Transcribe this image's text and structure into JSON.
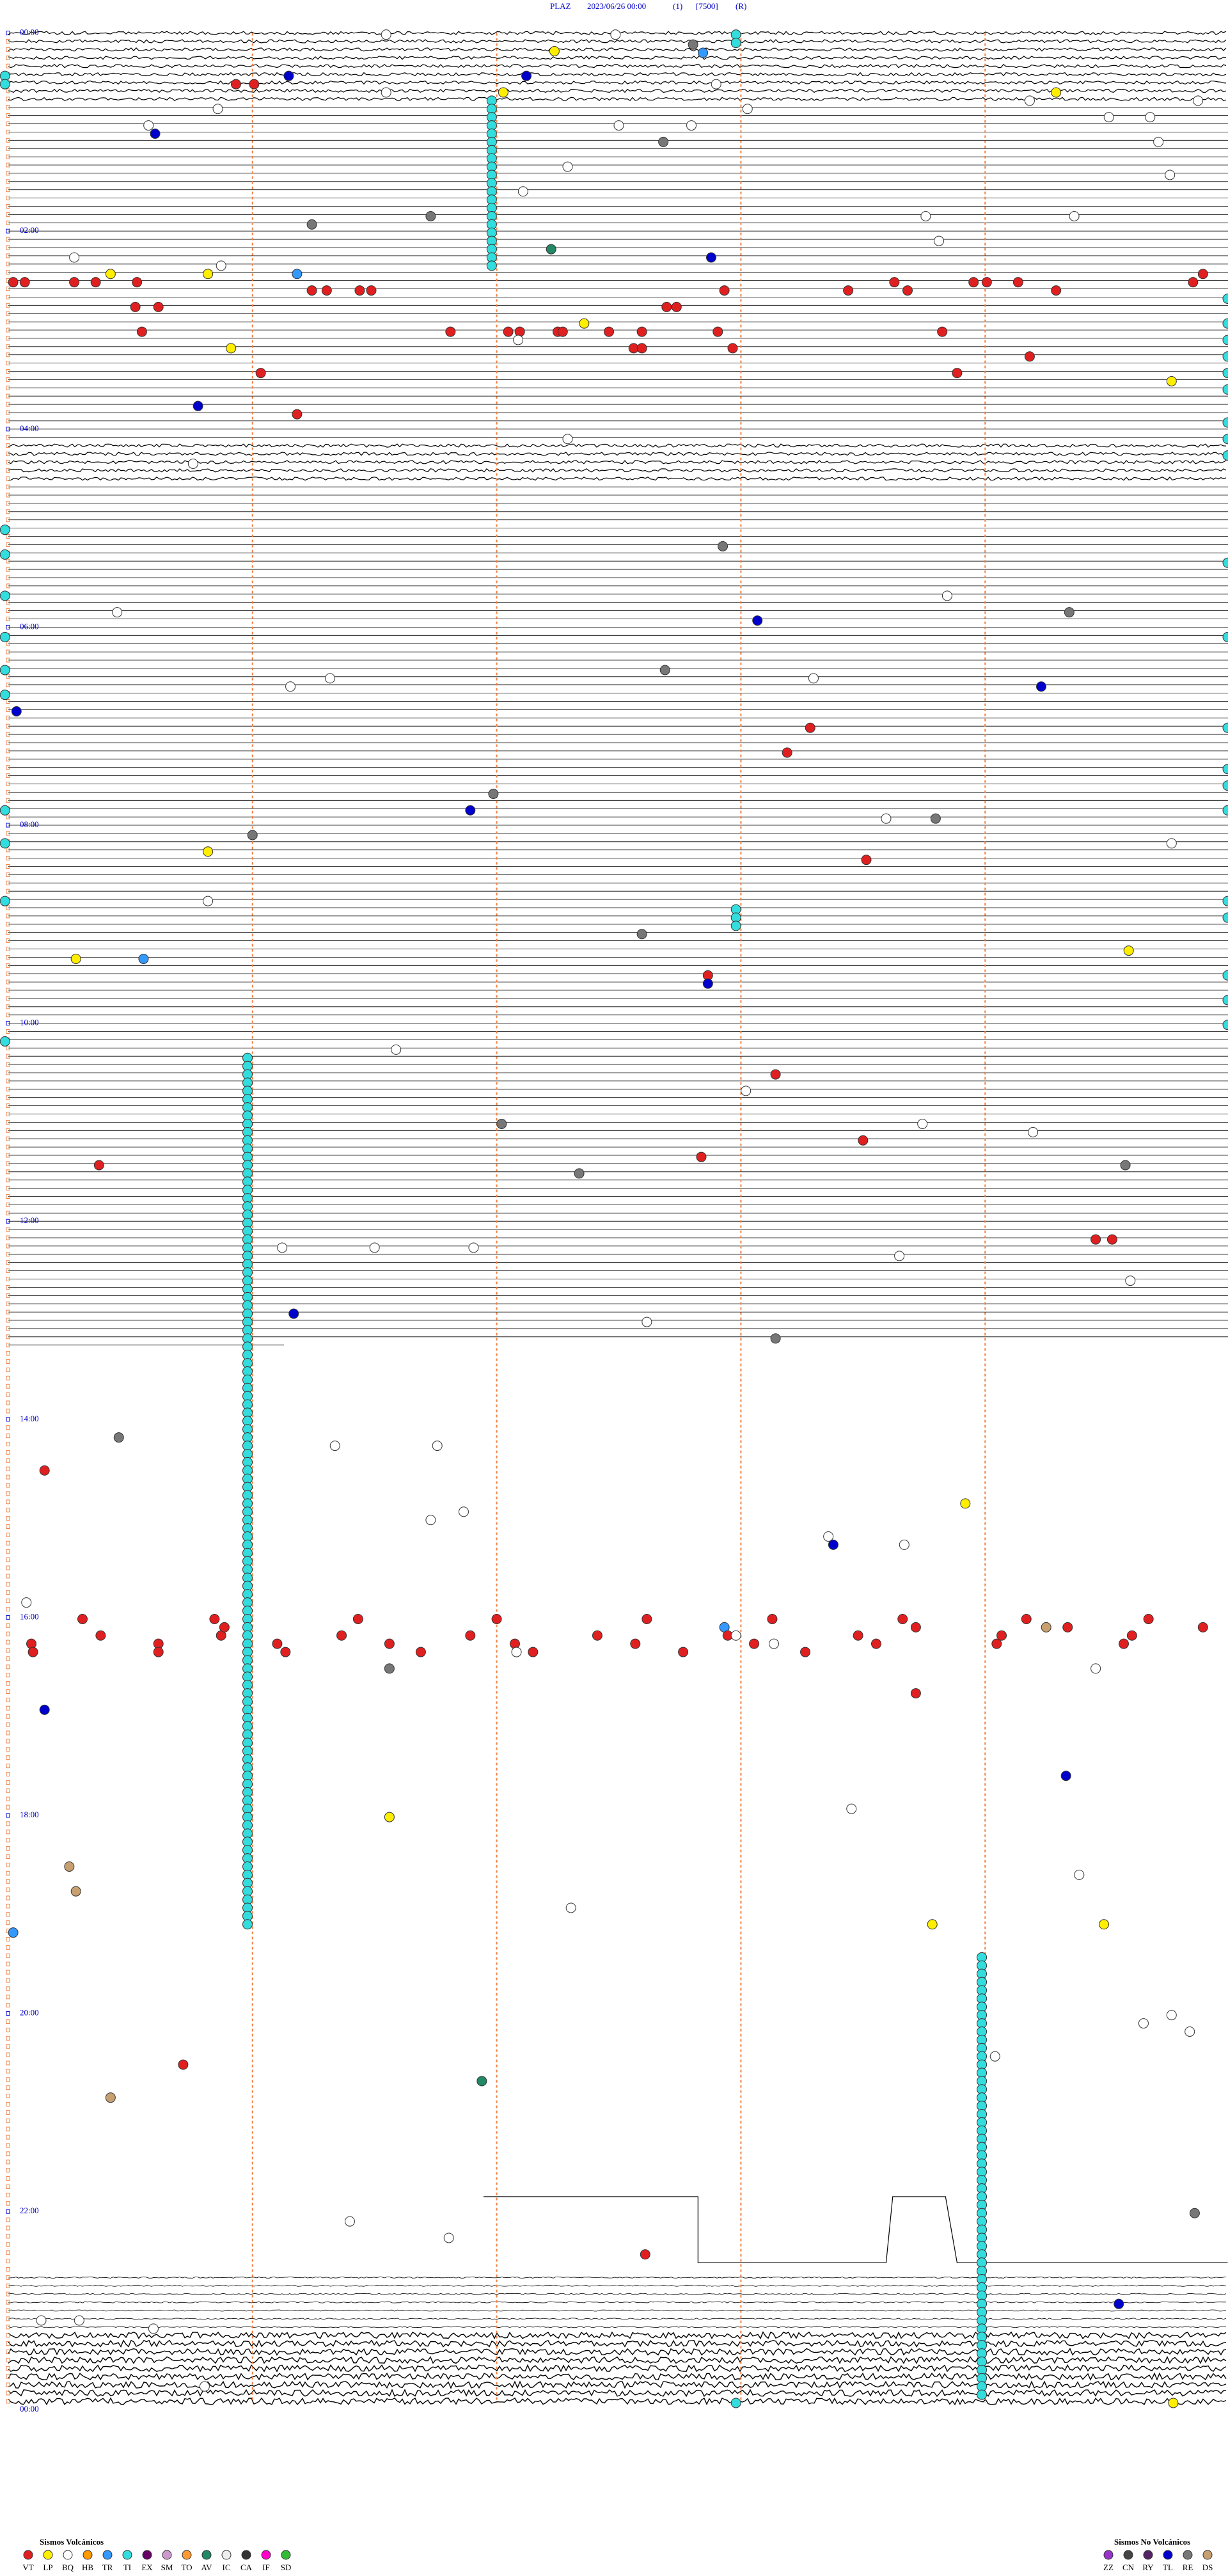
{
  "header": {
    "station": "PLAZ",
    "datetime": "2023/06/26 00:00",
    "channel": "(1)",
    "scale": "[7500]",
    "mode": "(R)"
  },
  "time_labels": [
    "00:00",
    "02:00",
    "04:00",
    "06:00",
    "08:00",
    "10:00",
    "12:00",
    "14:00",
    "16:00",
    "18:00",
    "20:00",
    "22:00",
    "00:00"
  ],
  "legend": {
    "volcanic": {
      "title": "Sismos Volcánicos",
      "items": [
        {
          "code": "VT",
          "color": "#e02020"
        },
        {
          "code": "LP",
          "color": "#ffee00"
        },
        {
          "code": "BQ",
          "color": "#ffffff"
        },
        {
          "code": "HB",
          "color": "#ff9900"
        },
        {
          "code": "TR",
          "color": "#3399ff"
        },
        {
          "code": "TI",
          "color": "#33dddd"
        },
        {
          "code": "EX",
          "color": "#660066"
        },
        {
          "code": "SM",
          "color": "#cc99cc"
        },
        {
          "code": "TO",
          "color": "#ff9933"
        },
        {
          "code": "AV",
          "color": "#228866"
        },
        {
          "code": "IC",
          "color": "#eeeeee"
        },
        {
          "code": "CA",
          "color": "#333333"
        },
        {
          "code": "IF",
          "color": "#ff00cc"
        },
        {
          "code": "SD",
          "color": "#33bb33"
        }
      ]
    },
    "non_volcanic": {
      "title": "Sismos No Volcánicos",
      "items": [
        {
          "code": "ZZ",
          "color": "#9933cc"
        },
        {
          "code": "CN",
          "color": "#444444"
        },
        {
          "code": "RY",
          "color": "#552266"
        },
        {
          "code": "TL",
          "color": "#0000cc"
        },
        {
          "code": "RE",
          "color": "#777777"
        },
        {
          "code": "DS",
          "color": "#c8a070"
        }
      ]
    }
  }
}
